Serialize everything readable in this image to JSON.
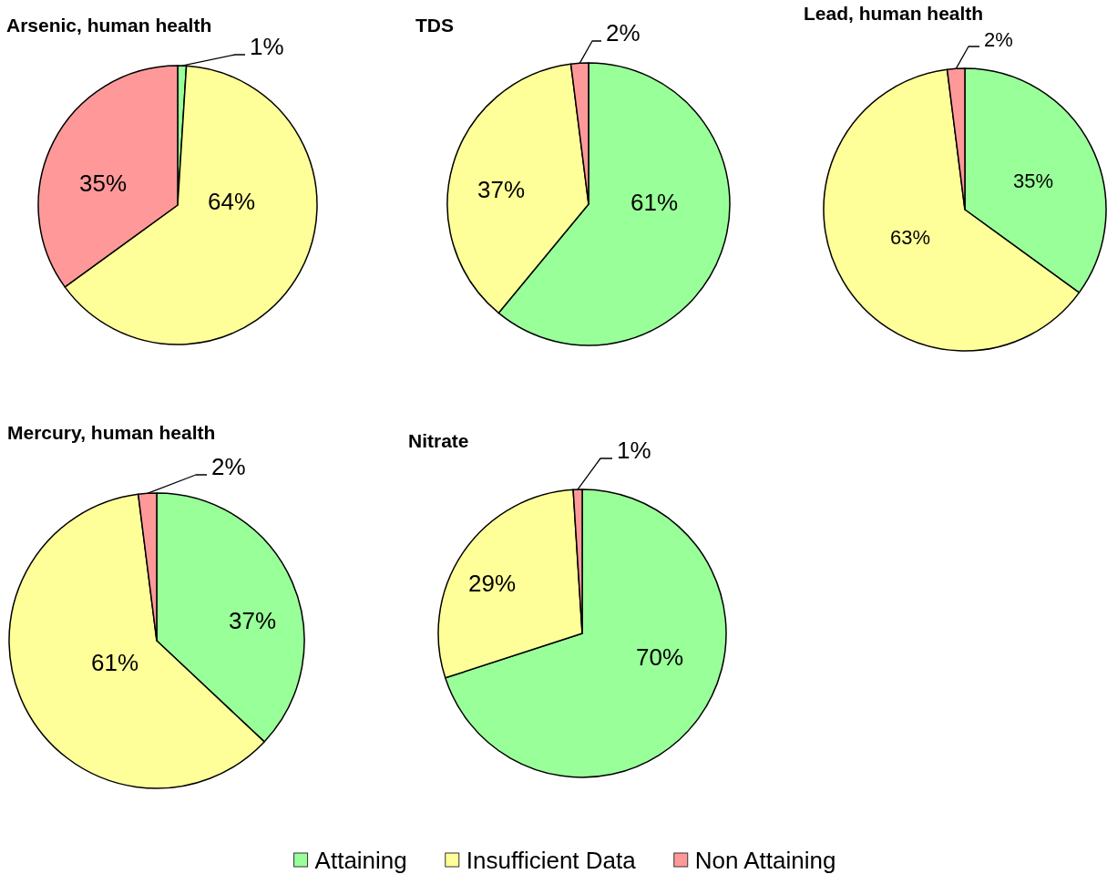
{
  "chart_data": [
    {
      "type": "pie",
      "title": "Arsenic, human health",
      "categories": [
        null,
        null,
        null
      ],
      "values": [
        1,
        64,
        35
      ],
      "colors": [
        "#99ff99",
        "#ffff99",
        "#ff9999"
      ],
      "value_labels": [
        "1%",
        "64%",
        "35%"
      ]
    },
    {
      "type": "pie",
      "title": "TDS",
      "categories": [
        null,
        null,
        null
      ],
      "values": [
        61,
        37,
        2
      ],
      "colors": [
        "#99ff99",
        "#ffff99",
        "#ff9999"
      ],
      "value_labels": [
        "61%",
        "37%",
        "2%"
      ]
    },
    {
      "type": "pie",
      "title": "Lead, human health",
      "categories": [
        null,
        null,
        null
      ],
      "values": [
        35,
        63,
        2
      ],
      "colors": [
        "#99ff99",
        "#ffff99",
        "#ff9999"
      ],
      "value_labels": [
        "35%",
        "63%",
        "2%"
      ]
    },
    {
      "type": "pie",
      "title": "Mercury, human health",
      "categories": [
        null,
        null,
        null
      ],
      "values": [
        37,
        61,
        2
      ],
      "colors": [
        "#99ff99",
        "#ffff99",
        "#ff9999"
      ],
      "value_labels": [
        "37%",
        "61%",
        "2%"
      ]
    },
    {
      "type": "pie",
      "title": "Nitrate",
      "categories": [
        "Attaining",
        "Insufficient Data",
        "Non Attaining"
      ],
      "values": [
        70,
        29,
        1
      ],
      "colors": [
        "#99ff99",
        "#ffff99",
        "#ff9999"
      ],
      "value_labels": [
        "70%",
        "29%",
        "1%"
      ],
      "legend": "bottom"
    }
  ]
}
